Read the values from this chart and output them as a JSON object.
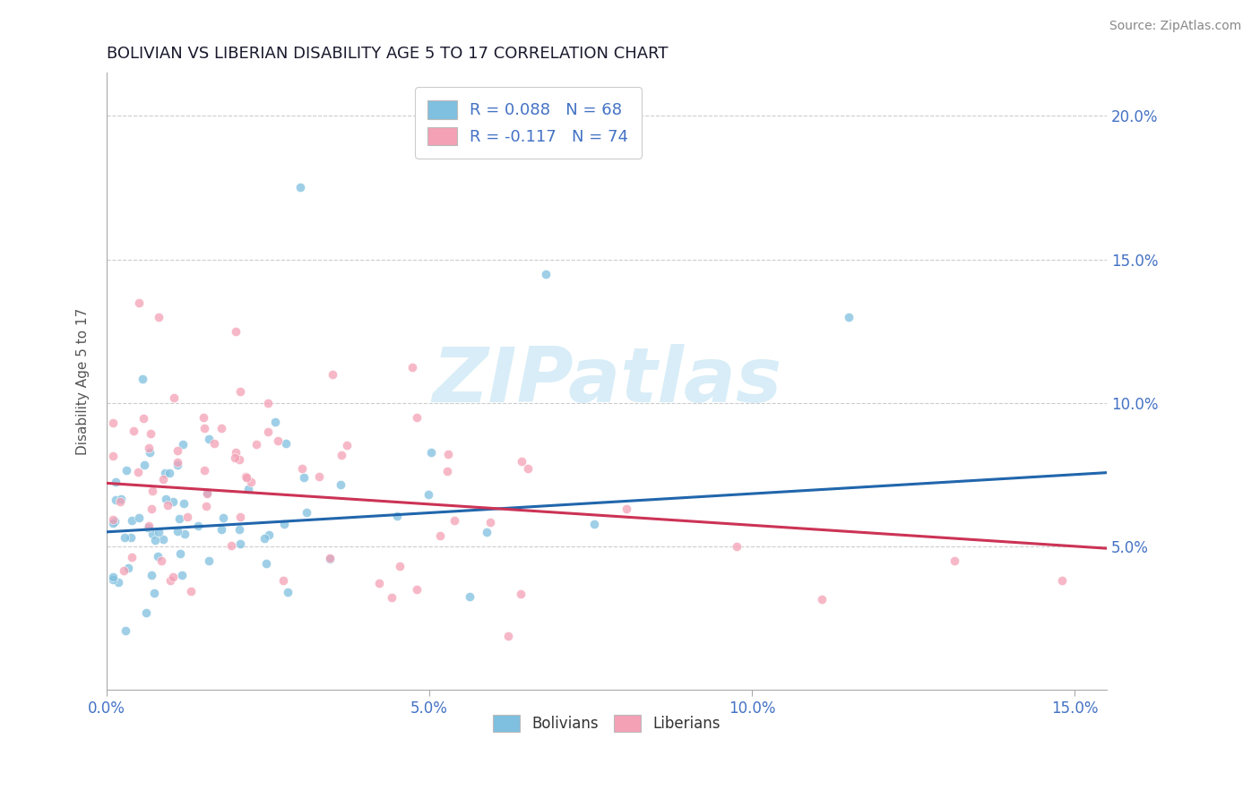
{
  "title": "BOLIVIAN VS LIBERIAN DISABILITY AGE 5 TO 17 CORRELATION CHART",
  "source_text": "Source: ZipAtlas.com",
  "ylabel": "Disability Age 5 to 17",
  "xlim": [
    0.0,
    0.155
  ],
  "ylim": [
    0.0,
    0.215
  ],
  "yticks": [
    0.05,
    0.1,
    0.15,
    0.2
  ],
  "ytick_labels": [
    "5.0%",
    "10.0%",
    "15.0%",
    "20.0%"
  ],
  "xticks": [
    0.0,
    0.05,
    0.1,
    0.15
  ],
  "xtick_labels": [
    "0.0%",
    "5.0%",
    "10.0%",
    "15.0%"
  ],
  "legend_r_bolivian": "R = 0.088",
  "legend_n_bolivian": "N = 68",
  "legend_r_liberian": "R = -0.117",
  "legend_n_liberian": "N = 74",
  "bolivian_color": "#7fbfdf",
  "liberian_color": "#f4a0b5",
  "trend_bolivian_color": "#2166ac",
  "trend_liberian_color": "#cc3355",
  "watermark_color": "#d8edf7",
  "title_color": "#1a1a2e",
  "axis_color": "#4472c4",
  "ylabel_color": "#555555",
  "grid_color": "#cccccc",
  "source_color": "#888888"
}
